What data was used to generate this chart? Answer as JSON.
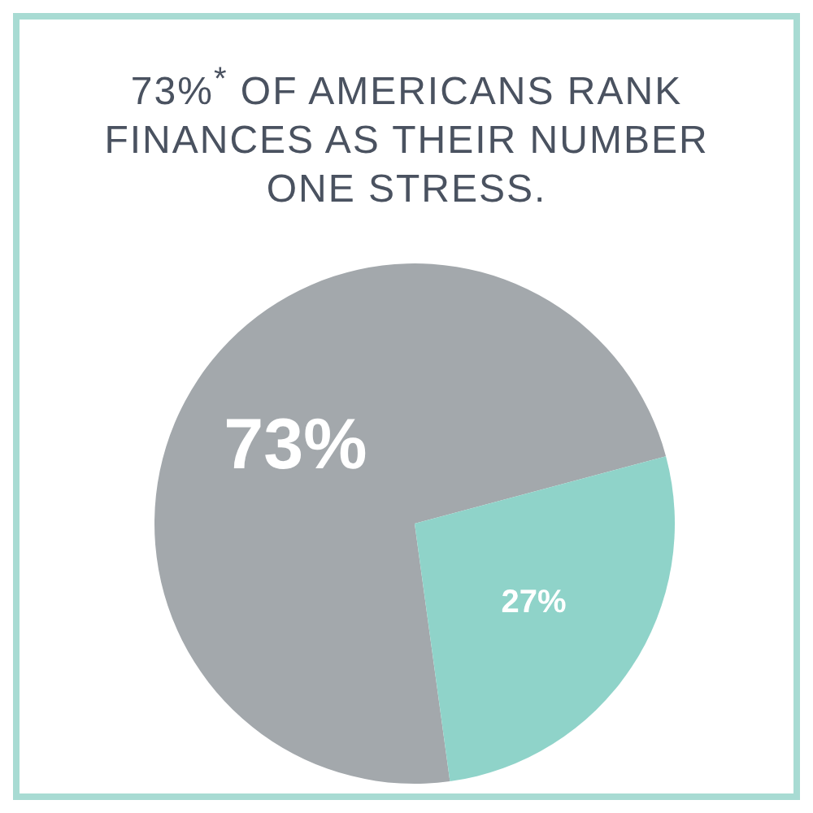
{
  "chart_data": {
    "type": "pie",
    "title": "73%$^{*}$ OF AMERICANS RANK FINANCES AS THEIR NUMBER ONE STRESS.",
    "categories": [
      null,
      null
    ],
    "values": [
      73,
      27
    ],
    "colors": [
      "#a3a8ac",
      "#8fd3c9"
    ],
    "value_labels": [
      "73%",
      "27%"
    ]
  }
}
